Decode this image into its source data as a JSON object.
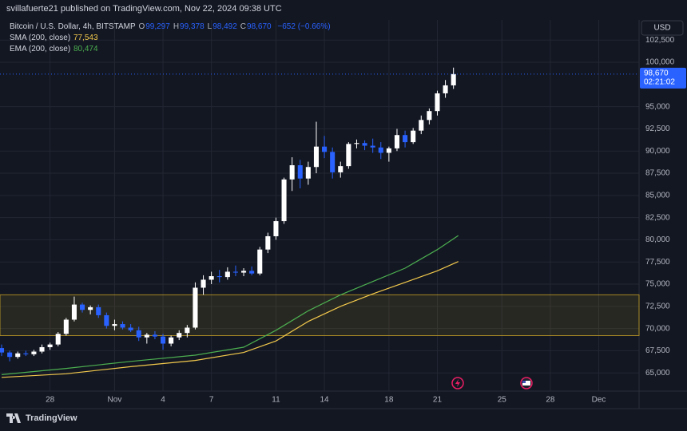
{
  "header": {
    "publisher": "svillafuerte21 published on TradingView.com, Nov 22, 2024 09:38 UTC"
  },
  "chart_data": {
    "type": "candlestick",
    "title": "Bitcoin / U.S. Dollar, 4h, BITSTAMP",
    "currency": "USD",
    "ohlc": [
      {
        "name": "O",
        "value": 99297,
        "label": "99,297"
      },
      {
        "name": "H",
        "value": 99378,
        "label": "99,378"
      },
      {
        "name": "L",
        "value": 98492,
        "label": "98,492"
      },
      {
        "name": "C",
        "value": 98670,
        "label": "98,670"
      }
    ],
    "change": "−652 (−0.66%)",
    "last_price": {
      "value": 98670,
      "label": "98,670"
    },
    "countdown": "02:21:02",
    "up_color": "#ffffff",
    "down_color": "#2962ff",
    "candles": [
      [
        25.0,
        67800,
        68200,
        66900,
        67300
      ],
      [
        25.5,
        67300,
        67500,
        66300,
        66800
      ],
      [
        26.0,
        66800,
        67400,
        66600,
        67200
      ],
      [
        26.5,
        67200,
        67500,
        66900,
        67100
      ],
      [
        27.0,
        67100,
        67600,
        66900,
        67400
      ],
      [
        27.5,
        67400,
        68200,
        67200,
        67900
      ],
      [
        28.0,
        67900,
        68400,
        67600,
        68200
      ],
      [
        28.5,
        68200,
        69600,
        68000,
        69400
      ],
      [
        29.0,
        69400,
        71200,
        69200,
        71000
      ],
      [
        29.5,
        71000,
        73600,
        70800,
        72700
      ],
      [
        30.0,
        72700,
        72900,
        71800,
        72100
      ],
      [
        30.5,
        72100,
        72600,
        71600,
        72400
      ],
      [
        31.0,
        72400,
        72700,
        71200,
        71500
      ],
      [
        31.5,
        71500,
        71800,
        70000,
        70300
      ],
      [
        32.0,
        70300,
        71000,
        69800,
        70500
      ],
      [
        32.5,
        70500,
        70800,
        69900,
        70100
      ],
      [
        33.0,
        70100,
        70500,
        69600,
        69800
      ],
      [
        33.5,
        69800,
        70200,
        68600,
        69000
      ],
      [
        34.0,
        69000,
        69500,
        68300,
        69300
      ],
      [
        34.5,
        69300,
        69700,
        68800,
        69100
      ],
      [
        35.0,
        69100,
        69400,
        67600,
        68300
      ],
      [
        35.5,
        68300,
        69200,
        68000,
        69000
      ],
      [
        36.0,
        69000,
        69800,
        68700,
        69500
      ],
      [
        36.5,
        69500,
        70400,
        69000,
        70100
      ],
      [
        37.0,
        70100,
        75200,
        69900,
        74600
      ],
      [
        37.5,
        74600,
        76000,
        73800,
        75500
      ],
      [
        38.0,
        75500,
        76400,
        75000,
        75900
      ],
      [
        38.5,
        75900,
        76600,
        75200,
        75800
      ],
      [
        39.0,
        75800,
        76900,
        75500,
        76400
      ],
      [
        39.5,
        76400,
        77100,
        75900,
        76300
      ],
      [
        40.0,
        76300,
        76800,
        75900,
        76500
      ],
      [
        40.5,
        76500,
        77000,
        76000,
        76200
      ],
      [
        41.0,
        76200,
        79200,
        76000,
        78900
      ],
      [
        41.5,
        78900,
        80800,
        78500,
        80400
      ],
      [
        42.0,
        80400,
        82500,
        80000,
        82100
      ],
      [
        42.5,
        82100,
        87000,
        81800,
        86800
      ],
      [
        43.0,
        86800,
        89300,
        85500,
        88400
      ],
      [
        43.5,
        88400,
        89000,
        85800,
        86900
      ],
      [
        44.0,
        86900,
        88800,
        86200,
        88200
      ],
      [
        44.5,
        88200,
        93300,
        87500,
        90500
      ],
      [
        45.0,
        90500,
        91700,
        89200,
        89900
      ],
      [
        45.5,
        89900,
        90400,
        86900,
        87600
      ],
      [
        46.0,
        87600,
        88800,
        87000,
        88300
      ],
      [
        46.5,
        88300,
        91000,
        88000,
        90800
      ],
      [
        47.0,
        90800,
        91300,
        90300,
        90900
      ],
      [
        47.5,
        90900,
        91200,
        90100,
        90600
      ],
      [
        48.0,
        90600,
        91400,
        89800,
        90400
      ],
      [
        48.5,
        90400,
        91000,
        89100,
        89800
      ],
      [
        49.0,
        89800,
        90500,
        88800,
        90300
      ],
      [
        49.5,
        90300,
        92500,
        90000,
        91800
      ],
      [
        50.0,
        91800,
        92300,
        90400,
        91000
      ],
      [
        50.5,
        91000,
        92600,
        90800,
        92300
      ],
      [
        51.0,
        92300,
        94000,
        91900,
        93500
      ],
      [
        51.5,
        93500,
        94800,
        93000,
        94500
      ],
      [
        52.0,
        94500,
        96800,
        94000,
        96500
      ],
      [
        52.5,
        96500,
        98000,
        96000,
        97400
      ],
      [
        53.0,
        97400,
        99400,
        97000,
        98670
      ]
    ],
    "series": [
      {
        "name": "SMA (200, close)",
        "color": "#f2c94c",
        "last": {
          "value": 77543,
          "label": "77,543"
        },
        "x": [
          25,
          29,
          33,
          37,
          40,
          42,
          44,
          46,
          48,
          50,
          52,
          53.3
        ],
        "values": [
          64500,
          64900,
          65700,
          66400,
          67300,
          68600,
          70800,
          72500,
          73900,
          75200,
          76500,
          77543
        ]
      },
      {
        "name": "EMA (200, close)",
        "color": "#4caf50",
        "last": {
          "value": 80474,
          "label": "80,474"
        },
        "x": [
          25,
          29,
          33,
          37,
          40,
          42,
          44,
          46,
          48,
          50,
          52,
          53.3
        ],
        "values": [
          64800,
          65500,
          66300,
          67000,
          67900,
          69800,
          72000,
          73800,
          75300,
          76800,
          78900,
          80474
        ]
      }
    ],
    "zone": [
      69200,
      73800
    ],
    "zone_color": "#c9a227",
    "grid": true,
    "xlim": [
      24.9,
      64.5
    ],
    "xticks": [
      28,
      {
        "value": 32,
        "label": "Nov"
      },
      {
        "value": 35,
        "label": "4"
      },
      {
        "value": 38,
        "label": "7"
      },
      {
        "value": 42,
        "label": "11"
      },
      {
        "value": 45,
        "label": "14"
      },
      {
        "value": 49,
        "label": "18"
      },
      {
        "value": 52,
        "label": "21"
      },
      {
        "value": 56,
        "label": "25"
      },
      {
        "value": 59,
        "label": "28"
      },
      {
        "value": 62,
        "label": "Dec"
      }
    ],
    "ylim": [
      62950,
      104770
    ],
    "yticks": [
      {
        "value": 65000,
        "label": "65,000"
      },
      {
        "value": 67500,
        "label": "67,500"
      },
      {
        "value": 70000,
        "label": "70,000"
      },
      {
        "value": 72500,
        "label": "72,500"
      },
      {
        "value": 75000,
        "label": "75,000"
      },
      {
        "value": 77500,
        "label": "77,500"
      },
      {
        "value": 80000,
        "label": "80,000"
      },
      {
        "value": 82500,
        "label": "82,500"
      },
      {
        "value": 85000,
        "label": "85,000"
      },
      {
        "value": 87500,
        "label": "87,500"
      },
      {
        "value": 90000,
        "label": "90,000"
      },
      {
        "value": 92500,
        "label": "92,500"
      },
      {
        "value": 95000,
        "label": "95,000"
      },
      {
        "value": 100000,
        "label": "100,000"
      },
      {
        "value": 102500,
        "label": "102,500"
      }
    ]
  },
  "footer": {
    "brand": "TradingView"
  }
}
